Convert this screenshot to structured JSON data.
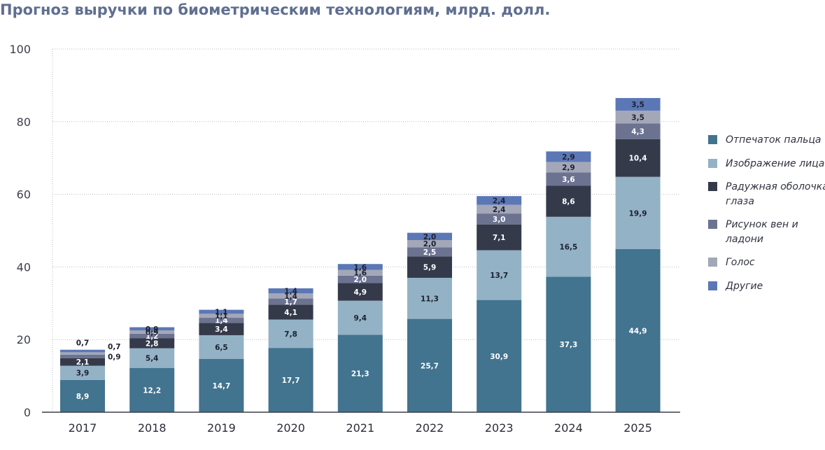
{
  "title": "Прогноз выручки по биометрическим технологиям, млрд. долл.",
  "chart_data": {
    "type": "bar",
    "stacked": true,
    "categories": [
      "2017",
      "2018",
      "2019",
      "2020",
      "2021",
      "2022",
      "2023",
      "2024",
      "2025"
    ],
    "ylim": [
      0,
      100
    ],
    "yticks": [
      "0",
      "20",
      "40",
      "60",
      "80",
      "100"
    ],
    "grid": true,
    "legend_position": "right",
    "series": [
      {
        "name": "Отпечаток пальца",
        "color": "#42738f",
        "values": [
          8.9,
          12.2,
          14.7,
          17.7,
          21.3,
          25.7,
          30.9,
          37.3,
          44.9
        ],
        "labels": [
          "8,9",
          "12,2",
          "14,7",
          "17,7",
          "21,3",
          "25,7",
          "30,9",
          "37,3",
          "44,9"
        ]
      },
      {
        "name": "Изображение лица",
        "color": "#93b2c5",
        "values": [
          3.9,
          5.4,
          6.5,
          7.8,
          9.4,
          11.3,
          13.7,
          16.5,
          19.9
        ],
        "labels": [
          "3,9",
          "5,4",
          "6,5",
          "7,8",
          "9,4",
          "11,3",
          "13,7",
          "16,5",
          "19,9"
        ]
      },
      {
        "name": "Радужная оболочка глаза",
        "color": "#353a4b",
        "values": [
          2.1,
          2.8,
          3.4,
          4.1,
          4.9,
          5.9,
          7.1,
          8.6,
          10.4
        ],
        "labels": [
          "2,1",
          "2,8",
          "3,4",
          "4,1",
          "4,9",
          "5,9",
          "7,1",
          "8,6",
          "10,4"
        ]
      },
      {
        "name": "Рисунок вен и ладони",
        "color": "#6c7391",
        "values": [
          0.9,
          1.2,
          1.4,
          1.7,
          2.0,
          2.5,
          3.0,
          3.6,
          4.3
        ],
        "labels": [
          "0,9",
          "1,2",
          "1,4",
          "1,7",
          "2,0",
          "2,5",
          "3,0",
          "3,6",
          "4,3"
        ]
      },
      {
        "name": "Голос",
        "color": "#a3a7b8",
        "values": [
          0.7,
          0.9,
          1.1,
          1.4,
          1.6,
          2.0,
          2.4,
          2.9,
          3.5
        ],
        "labels": [
          "0,7",
          "0,9",
          "1,1",
          "1,4",
          "1,6",
          "2,0",
          "2,4",
          "2,9",
          "3,5"
        ]
      },
      {
        "name": "Другие",
        "color": "#5b77b6",
        "values": [
          0.7,
          0.9,
          1.1,
          1.4,
          1.6,
          2.0,
          2.4,
          2.9,
          3.5
        ],
        "labels": [
          "0,7",
          "0,9",
          "1,1",
          "1,4",
          "1,6",
          "2,0",
          "2,4",
          "2,9",
          "3,5"
        ]
      }
    ]
  },
  "legend": [
    {
      "label": "Отпечаток пальца",
      "color": "#42738f"
    },
    {
      "label": "Изображение лица",
      "color": "#93b2c5"
    },
    {
      "label": "Радужная оболочка глаза",
      "color": "#353a4b"
    },
    {
      "label": "Рисунок вен и ладони",
      "color": "#6c7391"
    },
    {
      "label": "Голос",
      "color": "#a3a7b8"
    },
    {
      "label": "Другие",
      "color": "#5b77b6"
    }
  ]
}
